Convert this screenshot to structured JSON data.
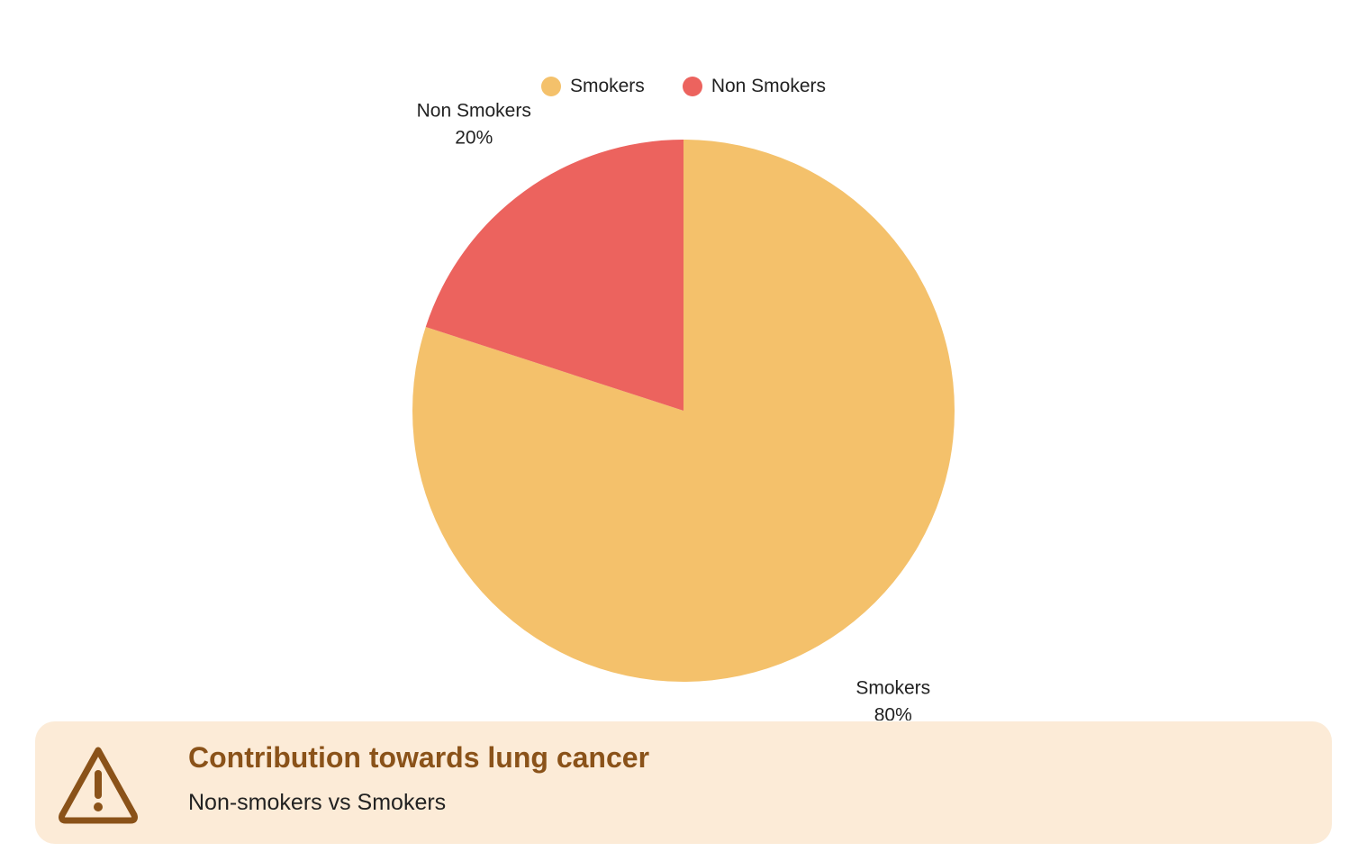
{
  "chart_data": {
    "type": "pie",
    "slices": [
      {
        "label": "Smokers",
        "value": 80,
        "value_label": "80%",
        "color": "#f4c16b"
      },
      {
        "label": "Non Smokers",
        "value": 20,
        "value_label": "20%",
        "color": "#ec635e"
      }
    ],
    "legend": {
      "placement": "top",
      "entries": [
        "Smokers",
        "Non Smokers"
      ]
    }
  },
  "banner": {
    "title": "Contribution towards lung cancer",
    "subtitle": "Non-smokers vs Smokers",
    "icon": "warning-triangle-icon",
    "background": "#fcebd7",
    "accent": "#8a5219"
  }
}
